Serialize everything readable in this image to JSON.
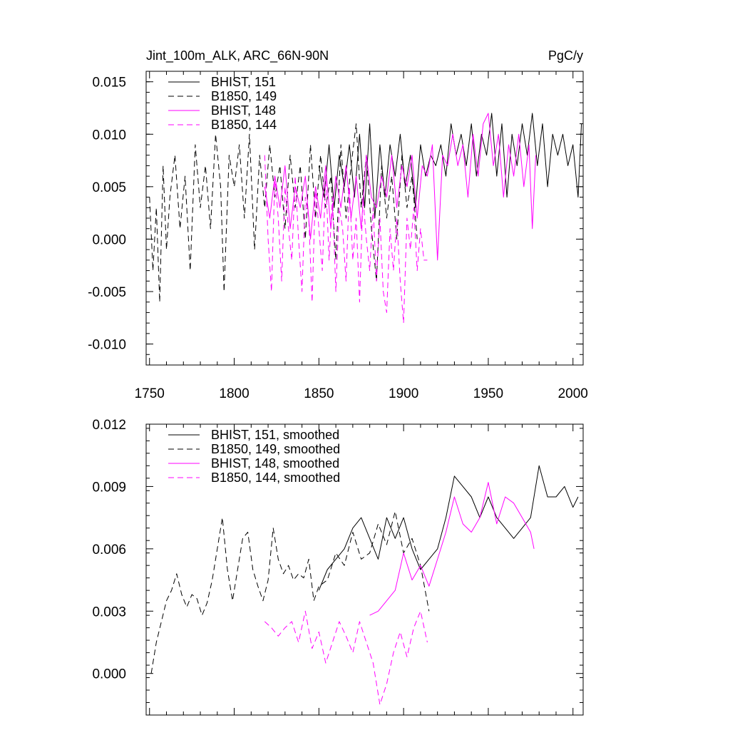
{
  "chart_data": [
    {
      "type": "line",
      "title_left": "Jint_100m_ALK, ARC_66N-90N",
      "title_right": "PgC/y",
      "xlim": [
        1748,
        2006
      ],
      "ylim": [
        -0.012,
        0.016
      ],
      "xticks": [
        1750,
        1800,
        1850,
        1900,
        1950,
        2000
      ],
      "xtick_labels": [
        "1750",
        "1800",
        "1850",
        "1900",
        "1950",
        "2000"
      ],
      "yticks": [
        -0.01,
        -0.005,
        0.0,
        0.005,
        0.01,
        0.015
      ],
      "ytick_labels": [
        "-0.010",
        "-0.005",
        "0.000",
        "0.005",
        "0.010",
        "0.015"
      ],
      "legend_position": "top-left",
      "series": [
        {
          "name": "BHIST, 151",
          "color": "#000000",
          "dash": "solid",
          "x": [
            1850,
            1853,
            1856,
            1859,
            1862,
            1865,
            1868,
            1871,
            1874,
            1877,
            1880,
            1883,
            1886,
            1889,
            1892,
            1895,
            1898,
            1901,
            1904,
            1907,
            1910,
            1913,
            1916,
            1919,
            1922,
            1925,
            1928,
            1931,
            1934,
            1937,
            1940,
            1943,
            1946,
            1949,
            1952,
            1955,
            1958,
            1961,
            1964,
            1967,
            1970,
            1973,
            1976,
            1979,
            1982,
            1985,
            1988,
            1991,
            1994,
            1997,
            2000,
            2003,
            2005
          ],
          "y": [
            0.007,
            0.004,
            0.009,
            0.003,
            0.008,
            0.005,
            0.009,
            0.004,
            0.01,
            0.003,
            0.011,
            0.002,
            0.009,
            0.004,
            0.009,
            0.006,
            0.01,
            0.005,
            0.008,
            0.003,
            0.009,
            0.006,
            0.008,
            0.007,
            0.009,
            0.006,
            0.011,
            0.008,
            0.01,
            0.007,
            0.011,
            0.006,
            0.01,
            0.008,
            0.012,
            0.006,
            0.011,
            0.004,
            0.01,
            0.007,
            0.011,
            0.008,
            0.012,
            0.007,
            0.011,
            0.005,
            0.01,
            0.008,
            0.01,
            0.007,
            0.009,
            0.004,
            0.011
          ]
        },
        {
          "name": "B1850, 149",
          "color": "#000000",
          "dash": "dashed",
          "x": [
            1750,
            1752,
            1754,
            1756,
            1758,
            1760,
            1762,
            1765,
            1768,
            1771,
            1774,
            1777,
            1780,
            1783,
            1786,
            1789,
            1792,
            1794,
            1797,
            1800,
            1803,
            1806,
            1809,
            1812,
            1815,
            1818,
            1821,
            1824,
            1827,
            1830,
            1833,
            1836,
            1839,
            1842,
            1845,
            1848,
            1851,
            1854,
            1857,
            1860,
            1863,
            1866,
            1869,
            1872,
            1875,
            1878,
            1881,
            1884,
            1887,
            1890,
            1893,
            1896,
            1899,
            1902,
            1905,
            1908
          ],
          "y": [
            0.004,
            -0.003,
            0.003,
            -0.006,
            0.007,
            -0.001,
            0.004,
            0.008,
            0.001,
            0.006,
            -0.003,
            0.009,
            0.003,
            0.007,
            0.001,
            0.01,
            0.005,
            -0.005,
            0.008,
            0.005,
            0.009,
            0.002,
            0.01,
            -0.001,
            0.008,
            0.003,
            0.009,
            0.004,
            0.007,
            0.001,
            0.008,
            0.003,
            0.007,
            0.0,
            0.009,
            0.002,
            0.008,
            0.003,
            0.006,
            -0.002,
            0.009,
            0.002,
            0.007,
            0.011,
            0.003,
            0.008,
            0.001,
            -0.004,
            0.007,
            0.002,
            0.006,
            0.0,
            0.008,
            0.003,
            0.006,
            0.0
          ]
        },
        {
          "name": "BHIST, 148",
          "color": "#ff00ff",
          "dash": "solid",
          "x": [
            1818,
            1821,
            1824,
            1827,
            1830,
            1833,
            1836,
            1839,
            1842,
            1845,
            1848,
            1851,
            1854,
            1857,
            1860,
            1863,
            1866,
            1869,
            1872,
            1875,
            1878,
            1881,
            1884,
            1887,
            1890,
            1893,
            1896,
            1899,
            1902,
            1905,
            1908,
            1911,
            1914,
            1917,
            1920,
            1923,
            1926,
            1929,
            1932,
            1935,
            1938,
            1941,
            1944,
            1947,
            1950,
            1953,
            1956,
            1959,
            1962,
            1965,
            1968,
            1971,
            1974,
            1976,
            1978
          ],
          "y": [
            0.005,
            0.002,
            0.006,
            0.003,
            0.007,
            0.001,
            0.005,
            0.003,
            0.006,
            0.0,
            0.005,
            0.002,
            0.007,
            0.001,
            0.006,
            0.003,
            0.007,
            0.002,
            0.006,
            0.001,
            0.008,
            0.004,
            0.003,
            0.006,
            0.004,
            0.008,
            0.003,
            0.007,
            0.005,
            0.008,
            0.002,
            0.007,
            0.006,
            0.009,
            -0.002,
            0.008,
            0.007,
            0.01,
            0.007,
            0.009,
            0.004,
            0.01,
            0.006,
            0.011,
            0.012,
            0.007,
            0.01,
            0.004,
            0.009,
            0.006,
            0.01,
            0.005,
            0.009,
            0.001,
            0.008
          ]
        },
        {
          "name": "B1850, 144",
          "color": "#ff00ff",
          "dash": "dashed",
          "x": [
            1818,
            1820,
            1822,
            1824,
            1826,
            1828,
            1830,
            1832,
            1834,
            1836,
            1838,
            1840,
            1842,
            1844,
            1846,
            1848,
            1850,
            1852,
            1854,
            1856,
            1858,
            1860,
            1862,
            1864,
            1866,
            1868,
            1870,
            1872,
            1874,
            1876,
            1878,
            1880,
            1882,
            1884,
            1886,
            1888,
            1890,
            1892,
            1894,
            1896,
            1898,
            1900,
            1902,
            1904,
            1906,
            1908,
            1910,
            1912,
            1914
          ],
          "y": [
            0.008,
            0.0,
            -0.005,
            0.006,
            0.002,
            -0.004,
            0.005,
            0.001,
            -0.002,
            0.006,
            0.0,
            -0.005,
            0.004,
            0.002,
            -0.006,
            0.005,
            0.001,
            -0.003,
            0.006,
            -0.002,
            0.004,
            -0.005,
            0.003,
            0.001,
            -0.004,
            0.005,
            -0.002,
            0.002,
            -0.006,
            0.004,
            0.0,
            -0.003,
            0.003,
            -0.004,
            0.002,
            -0.005,
            -0.007,
            0.001,
            -0.003,
            0.002,
            -0.004,
            -0.008,
            0.002,
            -0.001,
            0.003,
            -0.003,
            0.001,
            -0.002,
            -0.002
          ]
        }
      ]
    },
    {
      "type": "line",
      "xlim": [
        1748,
        2006
      ],
      "ylim": [
        -0.002,
        0.012
      ],
      "xticks": [
        1750,
        1800,
        1850,
        1900,
        1950,
        2000
      ],
      "yticks": [
        0.0,
        0.003,
        0.006,
        0.009,
        0.012
      ],
      "ytick_labels": [
        "0.000",
        "0.003",
        "0.006",
        "0.009",
        "0.012"
      ],
      "legend_position": "top-left",
      "series": [
        {
          "name": "BHIST, 151, smoothed",
          "color": "#000000",
          "dash": "solid",
          "x": [
            1850,
            1855,
            1860,
            1865,
            1870,
            1875,
            1880,
            1885,
            1890,
            1895,
            1900,
            1905,
            1910,
            1915,
            1920,
            1925,
            1930,
            1935,
            1940,
            1945,
            1950,
            1955,
            1960,
            1965,
            1970,
            1975,
            1980,
            1985,
            1990,
            1995,
            2000,
            2003
          ],
          "y": [
            0.004,
            0.005,
            0.0055,
            0.006,
            0.007,
            0.0075,
            0.0065,
            0.0055,
            0.0075,
            0.0065,
            0.0075,
            0.006,
            0.005,
            0.0055,
            0.006,
            0.0075,
            0.0095,
            0.009,
            0.0085,
            0.0075,
            0.0085,
            0.0075,
            0.007,
            0.0065,
            0.007,
            0.0075,
            0.01,
            0.0085,
            0.0085,
            0.009,
            0.008,
            0.0085
          ]
        },
        {
          "name": "B1850, 149, smoothed",
          "color": "#000000",
          "dash": "dashed",
          "x": [
            1751,
            1754,
            1757,
            1760,
            1763,
            1766,
            1769,
            1772,
            1775,
            1778,
            1781,
            1784,
            1787,
            1790,
            1793,
            1796,
            1799,
            1802,
            1805,
            1808,
            1811,
            1814,
            1817,
            1820,
            1823,
            1826,
            1829,
            1832,
            1835,
            1838,
            1841,
            1844,
            1847,
            1850,
            1855,
            1860,
            1865,
            1870,
            1875,
            1880,
            1885,
            1890,
            1895,
            1900,
            1905,
            1910,
            1915
          ],
          "y": [
            0.0,
            0.0015,
            0.0025,
            0.0035,
            0.004,
            0.0048,
            0.0038,
            0.0032,
            0.0038,
            0.0036,
            0.0028,
            0.0034,
            0.0045,
            0.006,
            0.0075,
            0.005,
            0.0035,
            0.005,
            0.0065,
            0.0068,
            0.005,
            0.0042,
            0.0035,
            0.0045,
            0.007,
            0.0055,
            0.0048,
            0.0052,
            0.0045,
            0.0048,
            0.0046,
            0.0055,
            0.0035,
            0.0042,
            0.0045,
            0.0058,
            0.0052,
            0.0068,
            0.0055,
            0.0058,
            0.0072,
            0.0062,
            0.0078,
            0.0058,
            0.0065,
            0.0052,
            0.003
          ]
        },
        {
          "name": "BHIST, 148, smoothed",
          "color": "#ff00ff",
          "dash": "solid",
          "x": [
            1880,
            1885,
            1890,
            1895,
            1900,
            1905,
            1910,
            1915,
            1920,
            1925,
            1930,
            1935,
            1940,
            1945,
            1950,
            1955,
            1960,
            1965,
            1970,
            1975,
            1977
          ],
          "y": [
            0.0028,
            0.003,
            0.0035,
            0.004,
            0.0058,
            0.0045,
            0.0052,
            0.0042,
            0.0055,
            0.0068,
            0.0085,
            0.0072,
            0.0068,
            0.0075,
            0.0092,
            0.0072,
            0.0085,
            0.0082,
            0.0075,
            0.0068,
            0.006
          ]
        },
        {
          "name": "B1850, 144, smoothed",
          "color": "#ff00ff",
          "dash": "dashed",
          "x": [
            1818,
            1822,
            1826,
            1830,
            1834,
            1838,
            1842,
            1846,
            1850,
            1854,
            1858,
            1862,
            1866,
            1870,
            1874,
            1878,
            1882,
            1886,
            1890,
            1894,
            1898,
            1902,
            1906,
            1910,
            1914
          ],
          "y": [
            0.0025,
            0.0022,
            0.0018,
            0.0022,
            0.0025,
            0.0015,
            0.003,
            0.0012,
            0.002,
            0.0005,
            0.0015,
            0.0025,
            0.0018,
            0.001,
            0.0025,
            0.0015,
            0.0005,
            -0.0015,
            -0.0005,
            0.001,
            0.002,
            0.0008,
            0.0022,
            0.003,
            0.0015
          ]
        }
      ]
    }
  ]
}
